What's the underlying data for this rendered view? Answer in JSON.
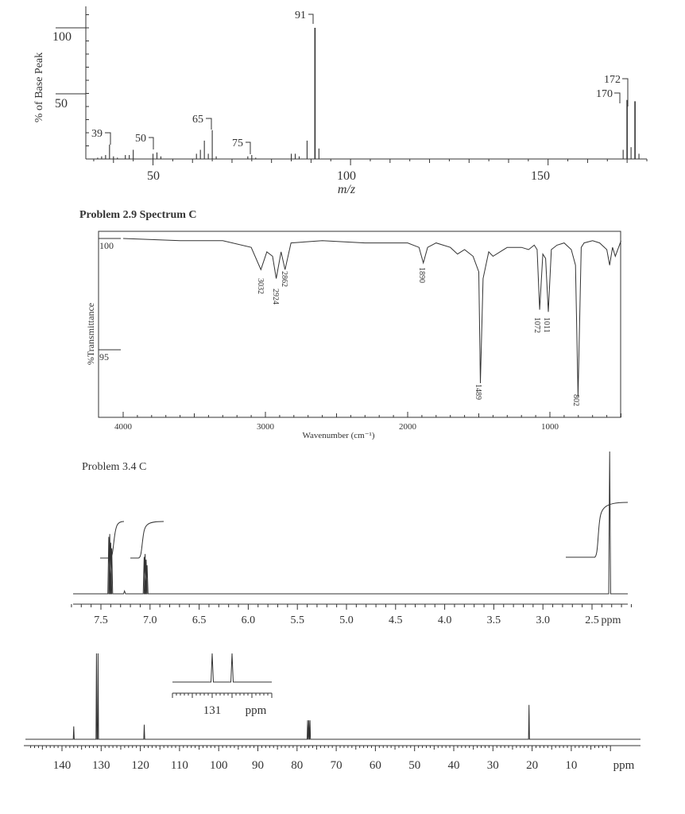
{
  "colors": {
    "line": "#333333",
    "text": "#333333",
    "background": "#ffffff"
  },
  "ms": {
    "ylabel": "% of Base Peak",
    "xlabel": "m/z",
    "xticks": [
      "50",
      "100",
      "150"
    ],
    "yticks": [
      "50",
      "100"
    ],
    "xlim": [
      33,
      175
    ],
    "ylim": [
      0,
      110
    ],
    "labels": [
      "39",
      "50",
      "65",
      "75",
      "91",
      "170",
      "172"
    ]
  },
  "ir": {
    "title": "Problem 2.9 Spectrum C",
    "ylabel": "%Transmittance",
    "xlabel": "Wavenumber (cm⁻¹)",
    "xticks": [
      "4000",
      "3000",
      "2000",
      "1000"
    ],
    "yticks": [
      "100",
      "95"
    ],
    "peak_labels": [
      "3032",
      "2924",
      "2862",
      "1890",
      "1489",
      "1072",
      "1011",
      "802"
    ]
  },
  "hnmr": {
    "title": "Problem 3.4 C",
    "xticks": [
      "7.5",
      "7.0",
      "6.5",
      "6.0",
      "5.5",
      "5.0",
      "4.5",
      "4.0",
      "3.5",
      "3.0",
      "2.5"
    ],
    "unit": "ppm"
  },
  "cnmr": {
    "xticks": [
      "140",
      "130",
      "120",
      "110",
      "100",
      "90",
      "80",
      "70",
      "60",
      "50",
      "40",
      "30",
      "20",
      "10"
    ],
    "unit": "ppm",
    "inset_label": "131",
    "inset_unit": "ppm"
  },
  "chart_data": [
    {
      "type": "bar",
      "title": "",
      "xlabel": "m/z",
      "ylabel": "% of Base Peak",
      "xlim": [
        33,
        175
      ],
      "ylim": [
        0,
        110
      ],
      "grid": false,
      "series": [
        {
          "x": [
            36,
            37,
            38,
            39,
            40,
            41,
            43,
            44,
            45,
            50,
            51,
            52,
            61,
            62,
            63,
            64,
            65,
            66,
            74,
            75,
            76,
            85,
            86,
            87,
            89,
            91,
            92,
            169,
            170,
            171,
            172,
            173
          ],
          "values": [
            1,
            2,
            3,
            11,
            2,
            1,
            3,
            3,
            7,
            4,
            5,
            2,
            4,
            7,
            14,
            4,
            22,
            2,
            2,
            3,
            1,
            4,
            4,
            2,
            14,
            100,
            8,
            7,
            45,
            9,
            44,
            4
          ]
        }
      ],
      "annotations": [
        "39",
        "50",
        "65",
        "75",
        "91",
        "170",
        "172"
      ]
    },
    {
      "type": "line",
      "title": "Problem 2.9 Spectrum C",
      "xlabel": "Wavenumber (cm⁻¹)",
      "ylabel": "%Transmittance",
      "xlim": [
        4000,
        500
      ],
      "grid": false,
      "series": [
        {
          "x": [
            4000,
            3600,
            3300,
            3100,
            3032,
            2990,
            2950,
            2924,
            2890,
            2862,
            2820,
            2600,
            2300,
            2000,
            1920,
            1890,
            1860,
            1800,
            1700,
            1650,
            1600,
            1540,
            1500,
            1489,
            1470,
            1430,
            1400,
            1300,
            1200,
            1150,
            1110,
            1090,
            1072,
            1050,
            1030,
            1011,
            990,
            950,
            900,
            850,
            820,
            802,
            780,
            760,
            700,
            650,
            600,
            580,
            560,
            540,
            500
          ],
          "values": [
            100,
            99.9,
            99.9,
            99.6,
            98.6,
            99.4,
            99.2,
            98.2,
            99.4,
            98.6,
            99.8,
            99.9,
            99.8,
            99.8,
            99.6,
            98.9,
            99.6,
            99.8,
            99.6,
            99.3,
            99.5,
            99.2,
            98.5,
            93.5,
            98.2,
            99.4,
            99.2,
            99.6,
            99.6,
            99.5,
            99.7,
            99.5,
            96.8,
            99.3,
            99.1,
            96.7,
            99.5,
            99.7,
            99.8,
            99.5,
            98.8,
            92.9,
            99.6,
            99.8,
            99.9,
            99.8,
            99.5,
            98.8,
            99.6,
            99.2,
            99.9
          ]
        }
      ],
      "annotations": [
        "3032",
        "2924",
        "2862",
        "1890",
        "1489",
        "1072",
        "1011",
        "802"
      ]
    },
    {
      "type": "line",
      "title": "Problem 3.4 C",
      "xlabel": "ppm",
      "xlim": [
        7.8,
        2.0
      ],
      "grid": false,
      "series": [
        {
          "x": [
            7.42,
            7.41,
            7.4,
            7.39,
            7.06,
            7.05,
            7.04,
            7.03,
            7.26,
            2.32
          ],
          "values": [
            0.4,
            0.42,
            0.36,
            0.32,
            0.26,
            0.28,
            0.24,
            0.2,
            0.02,
            1.0
          ]
        }
      ],
      "integrals": [
        {
          "from": 7.47,
          "to": 7.34,
          "relative": 2
        },
        {
          "from": 7.12,
          "to": 6.98,
          "relative": 2
        },
        {
          "from": 2.45,
          "to": 2.2,
          "relative": 3
        }
      ]
    },
    {
      "type": "line",
      "title": "",
      "xlabel": "ppm",
      "xlim": [
        150,
        0
      ],
      "grid": false,
      "series": [
        {
          "x": [
            137.0,
            131.2,
            130.8,
            119.0,
            77.3,
            77.0,
            76.7,
            20.8
          ],
          "values": [
            0.15,
            1.0,
            1.0,
            0.17,
            0.22,
            0.22,
            0.22,
            0.4
          ]
        }
      ],
      "inset": {
        "label": "131",
        "peaks": [
          131.1,
          130.9
        ]
      }
    }
  ]
}
